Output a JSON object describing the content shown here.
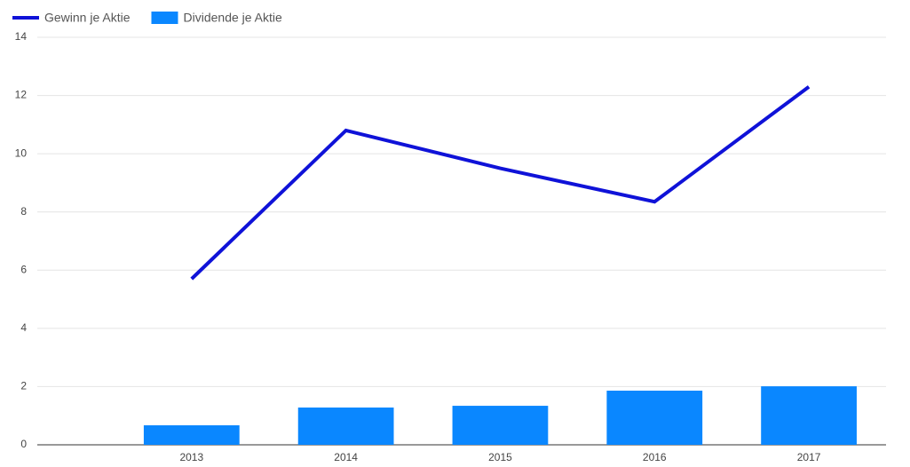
{
  "chart_data": {
    "type": "combo",
    "x": [
      2013,
      2014,
      2015,
      2016,
      2017
    ],
    "xlim": [
      2012,
      2017.5
    ],
    "xticks": [
      2013,
      2014,
      2015,
      2016,
      2017
    ],
    "ylim": [
      0,
      14
    ],
    "yticks": [
      0,
      2,
      4,
      6,
      8,
      10,
      12,
      14
    ],
    "grid": true,
    "legend": "top-left",
    "series": [
      {
        "name": "Gewinn je Aktie",
        "type": "line",
        "color": "#0f12d8",
        "values": [
          5.7,
          10.8,
          9.5,
          8.35,
          12.3
        ]
      },
      {
        "name": "Dividende je Aktie",
        "type": "bar",
        "color": "#0a87ff",
        "values": [
          0.67,
          1.28,
          1.34,
          1.86,
          2.01
        ]
      }
    ]
  }
}
